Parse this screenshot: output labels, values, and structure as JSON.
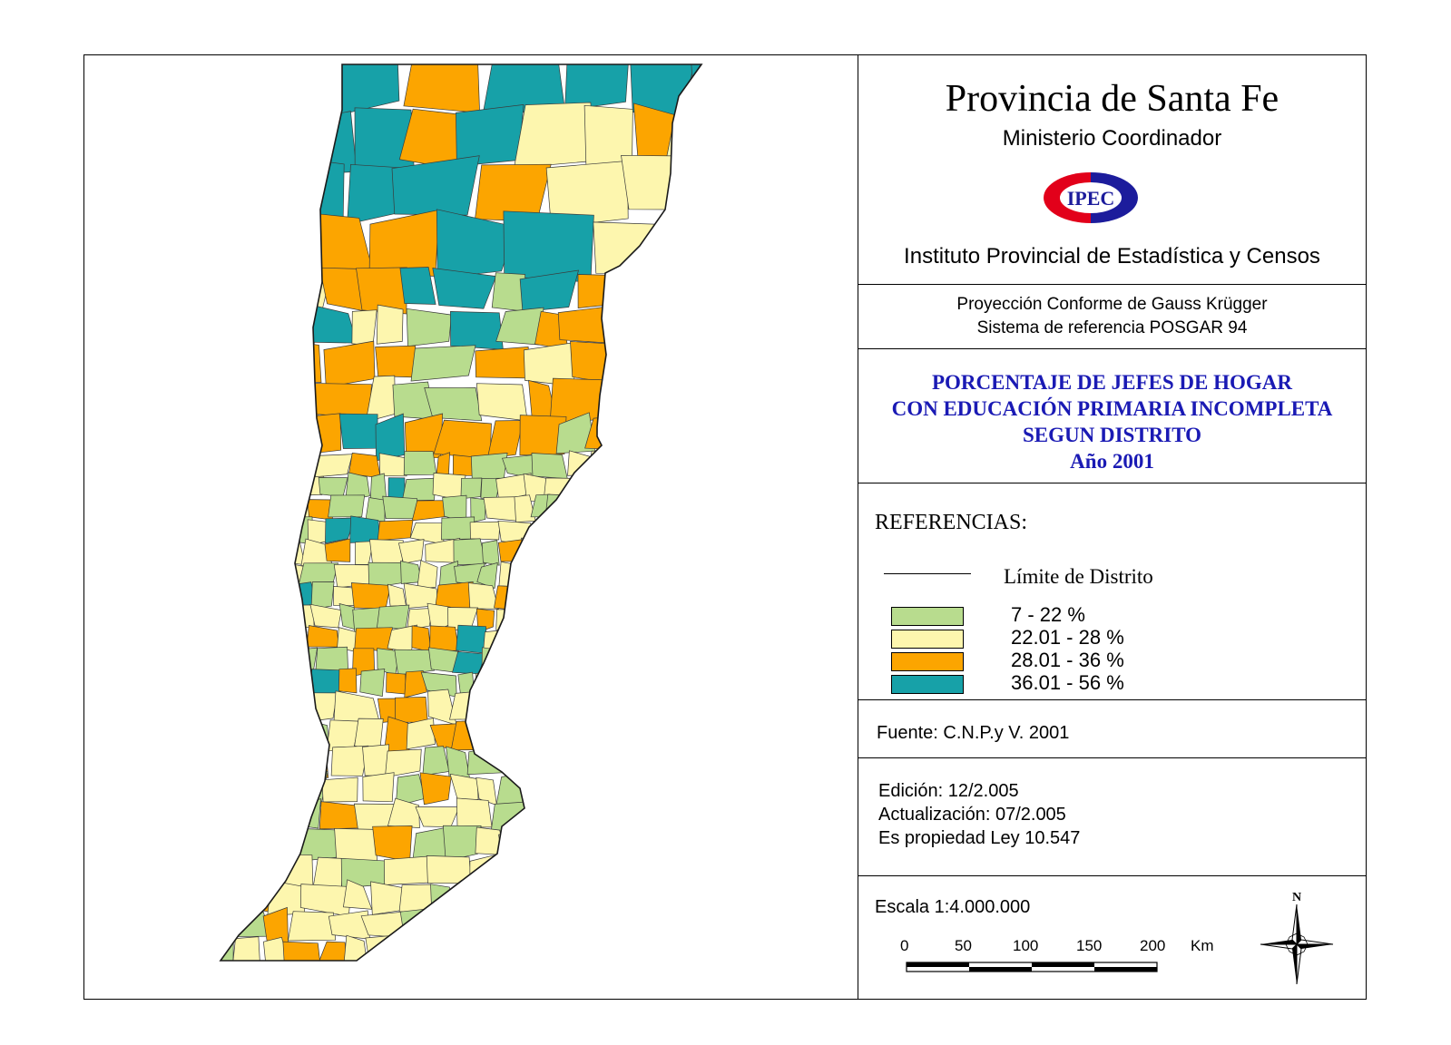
{
  "header": {
    "province_title": "Provincia de Santa Fe",
    "ministry": "Ministerio Coordinador",
    "logo_text": "IPEC",
    "institute": "Instituto Provincial de Estadística y Censos"
  },
  "projection": {
    "line1": "Proyección Conforme de Gauss Krügger",
    "line2": "Sistema de referencia POSGAR 94"
  },
  "map_title": {
    "line1": "PORCENTAJE DE JEFES DE HOGAR",
    "line2": "CON EDUCACIÓN PRIMARIA INCOMPLETA",
    "line3": "SEGUN DISTRITO",
    "line4": "Año 2001"
  },
  "legend": {
    "title": "REFERENCIAS:",
    "limit_label": "Límite de Distrito",
    "classes": [
      {
        "label": "7 - 22 %",
        "color": "#b8dc8e"
      },
      {
        "label": "22.01 - 28 %",
        "color": "#fdf6ae"
      },
      {
        "label": "28.01 - 36 %",
        "color": "#fca500"
      },
      {
        "label": "36.01 - 56 %",
        "color": "#17a1a8"
      }
    ]
  },
  "source": "Fuente:  C.N.P.y V. 2001",
  "edition": {
    "edition": "Edición:  12/2.005",
    "update": "Actualización:  07/2.005",
    "property": "Es propiedad Ley 10.547"
  },
  "scale": {
    "text": "Escala 1:4.000.000",
    "ticks": [
      "0",
      "50",
      "100",
      "150",
      "200"
    ],
    "unit": "Km"
  },
  "north_label": "N",
  "colors": {
    "title_blue": "#1a1ab4",
    "logo_red": "#e2001a",
    "logo_blue": "#1c1c9c"
  }
}
